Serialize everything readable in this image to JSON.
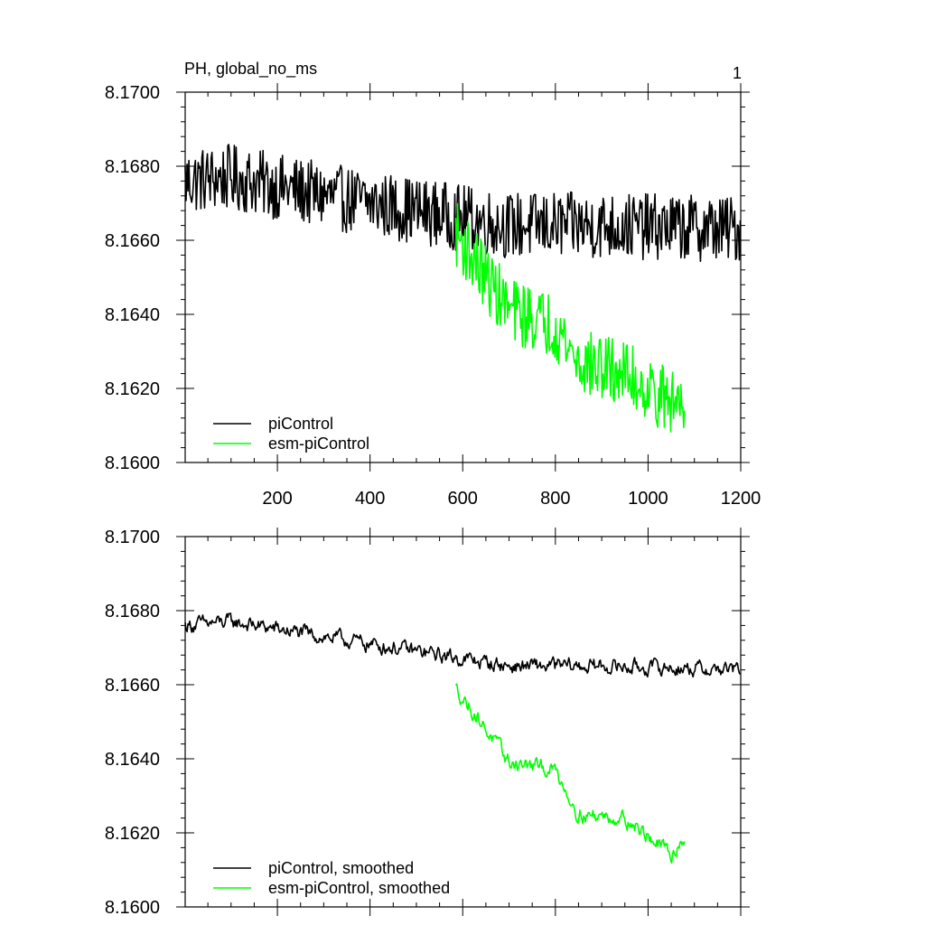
{
  "page": {
    "title_left": "PH, global_no_ms",
    "title_right": "1"
  },
  "colors": {
    "piControl": "#000000",
    "esm_piControl": "#00ff00"
  },
  "chart_data": [
    {
      "type": "line",
      "title": "PH, global_no_ms",
      "panel_number": "1",
      "xlabel": "",
      "ylabel": "",
      "xlim": [
        1,
        1200
      ],
      "ylim": [
        8.16,
        8.17
      ],
      "x_ticks": [
        200,
        400,
        600,
        800,
        1000,
        1200
      ],
      "x_tick_labels": [
        "200",
        "400",
        "600",
        "800",
        "1000",
        "1200"
      ],
      "y_ticks": [
        8.16,
        8.162,
        8.164,
        8.166,
        8.168,
        8.17
      ],
      "y_tick_labels": [
        "8.1600",
        "8.1620",
        "8.1640",
        "8.1660",
        "8.1680",
        "8.1700"
      ],
      "grid": false,
      "legend_position": "bottom-left",
      "series": [
        {
          "name": "piControl",
          "color": "#000000",
          "x_start": 1,
          "x_end": 1200,
          "step": 2,
          "trend": [
            [
              1,
              8.1676
            ],
            [
              100,
              8.1677
            ],
            [
              300,
              8.1672
            ],
            [
              500,
              8.1668
            ],
            [
              700,
              8.1664
            ],
            [
              900,
              8.1664
            ],
            [
              1200,
              8.1663
            ]
          ],
          "noise_amplitude": 0.0009
        },
        {
          "name": "esm-piControl",
          "color": "#00ff00",
          "x_start": 585,
          "x_end": 1080,
          "step": 2,
          "trend": [
            [
              585,
              8.1662
            ],
            [
              650,
              8.165
            ],
            [
              700,
              8.1641
            ],
            [
              800,
              8.1637
            ],
            [
              850,
              8.1627
            ],
            [
              950,
              8.1624
            ],
            [
              1050,
              8.1616
            ],
            [
              1080,
              8.1618
            ]
          ],
          "noise_amplitude": 0.0009
        }
      ]
    },
    {
      "type": "line",
      "title": "",
      "xlabel": "",
      "ylabel": "",
      "xlim": [
        1,
        1200
      ],
      "ylim": [
        8.16,
        8.17
      ],
      "x_ticks": [
        200,
        400,
        600,
        800,
        1000,
        1200
      ],
      "x_tick_labels": [],
      "y_ticks": [
        8.16,
        8.162,
        8.164,
        8.166,
        8.168,
        8.17
      ],
      "y_tick_labels": [
        "8.1600",
        "8.1620",
        "8.1640",
        "8.1660",
        "8.1680",
        "8.1700"
      ],
      "grid": false,
      "legend_position": "bottom-left",
      "series": [
        {
          "name": "piControl, smoothed",
          "color": "#000000",
          "x_start": 1,
          "x_end": 1200,
          "step": 2,
          "trend": [
            [
              1,
              8.1676
            ],
            [
              100,
              8.1677
            ],
            [
              300,
              8.1673
            ],
            [
              500,
              8.1669
            ],
            [
              700,
              8.1665
            ],
            [
              900,
              8.1665
            ],
            [
              1200,
              8.1664
            ]
          ],
          "noise_amplitude": 0.0004
        },
        {
          "name": "esm-piControl, smoothed",
          "color": "#00ff00",
          "x_start": 585,
          "x_end": 1080,
          "step": 2,
          "trend": [
            [
              585,
              8.1659
            ],
            [
              650,
              8.1648
            ],
            [
              700,
              8.1639
            ],
            [
              800,
              8.1637
            ],
            [
              850,
              8.1625
            ],
            [
              950,
              8.1624
            ],
            [
              1050,
              8.1614
            ],
            [
              1080,
              8.1619
            ]
          ],
          "noise_amplitude": 0.0004
        }
      ]
    }
  ]
}
